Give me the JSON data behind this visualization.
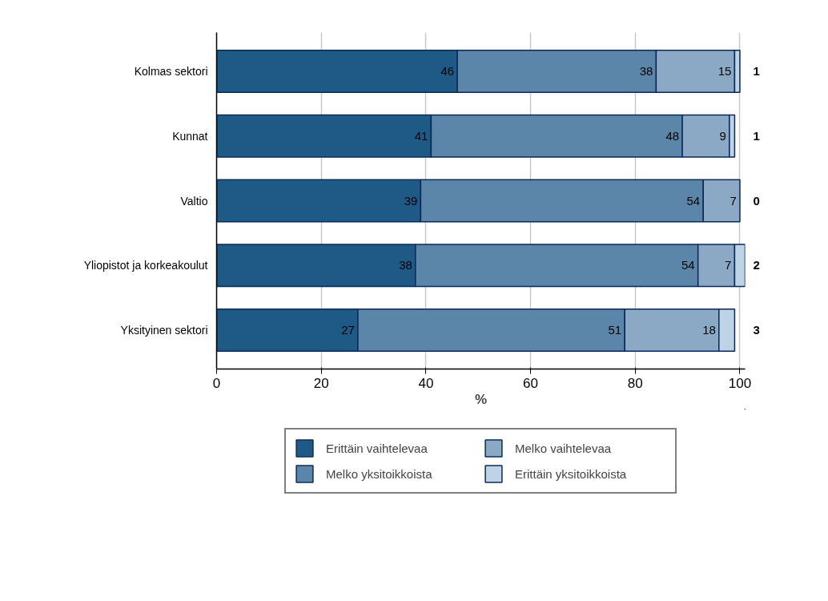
{
  "chart_data": {
    "type": "bar",
    "orientation": "horizontal",
    "stacked": true,
    "xlabel": "%",
    "categories": [
      "Kolmas sektori",
      "Kunnat",
      "Valtio",
      "Yliopistot ja korkeakoulut",
      "Yksityinen sektori"
    ],
    "series": [
      {
        "name": "Erittäin vaihtelevaa",
        "color": "#1f5a86",
        "values": [
          46,
          41,
          39,
          38,
          27
        ]
      },
      {
        "name": "Melko yksitoikkoista",
        "color": "#5b86a9",
        "values": [
          38,
          48,
          54,
          54,
          51
        ]
      },
      {
        "name": "Melko vaihtelevaa",
        "color": "#8ba9c4",
        "values": [
          15,
          9,
          7,
          7,
          18
        ]
      },
      {
        "name": "Erittäin yksitoikkoista",
        "color": "#bed3e6",
        "values": [
          1,
          1,
          0,
          2,
          3
        ]
      }
    ],
    "xlim": [
      0,
      101
    ],
    "xticks": [
      0,
      20,
      40,
      60,
      80,
      100
    ],
    "grid": "x",
    "legend": "bottom",
    "data_labels": true
  }
}
